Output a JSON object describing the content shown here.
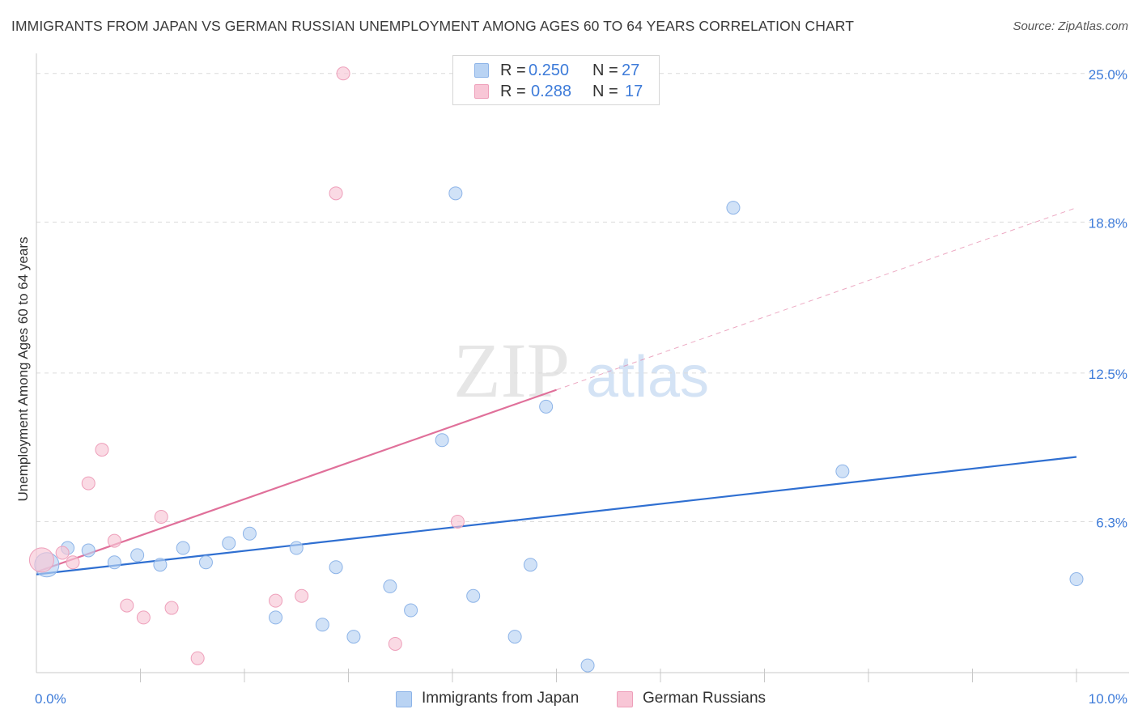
{
  "title": "IMMIGRANTS FROM JAPAN VS GERMAN RUSSIAN UNEMPLOYMENT AMONG AGES 60 TO 64 YEARS CORRELATION CHART",
  "source": "Source: ZipAtlas.com",
  "watermark": {
    "zip": "ZIP",
    "atlas": "atlas"
  },
  "legend_top": [
    {
      "r_label": "R =",
      "r_value": "0.250",
      "n_label": "N =",
      "n_value": "27"
    },
    {
      "r_label": "R =",
      "r_value": "0.288",
      "n_label": "N =",
      "n_value": "17"
    }
  ],
  "colors": {
    "blue_fill": "#b9d3f3",
    "blue_stroke": "#8db4e8",
    "blue_line": "#2f6fd1",
    "pink_fill": "#f8c6d6",
    "pink_stroke": "#ee9fba",
    "pink_line": "#e0709a",
    "tick_blue": "#3d7bd9",
    "grid": "#dcdcdc"
  },
  "chart_data": {
    "type": "scatter",
    "title": "IMMIGRANTS FROM JAPAN VS GERMAN RUSSIAN UNEMPLOYMENT AMONG AGES 60 TO 64 YEARS CORRELATION CHART",
    "xlabel": "",
    "ylabel": "Unemployment Among Ages 60 to 64 years",
    "xlim": [
      0,
      10
    ],
    "ylim": [
      0,
      25.6
    ],
    "x_tick_labels": [
      "0.0%",
      "10.0%"
    ],
    "y_ticks": [
      6.3,
      12.5,
      18.8,
      25.0
    ],
    "y_tick_labels": [
      "6.3%",
      "12.5%",
      "18.8%",
      "25.0%"
    ],
    "legend_position": "top-center",
    "series": [
      {
        "name": "Immigrants from Japan",
        "color": "blue",
        "points": [
          [
            0.1,
            4.5,
            "large"
          ],
          [
            0.3,
            5.2
          ],
          [
            0.5,
            5.1
          ],
          [
            0.75,
            4.6
          ],
          [
            0.97,
            4.9
          ],
          [
            1.19,
            4.5
          ],
          [
            1.41,
            5.2
          ],
          [
            1.63,
            4.6
          ],
          [
            1.85,
            5.4
          ],
          [
            2.05,
            5.8
          ],
          [
            2.3,
            2.3
          ],
          [
            2.5,
            5.2
          ],
          [
            2.75,
            2.0
          ],
          [
            2.88,
            4.4
          ],
          [
            3.05,
            1.5
          ],
          [
            3.4,
            3.6
          ],
          [
            3.6,
            2.6
          ],
          [
            3.9,
            9.7
          ],
          [
            4.03,
            20.0
          ],
          [
            4.2,
            3.2
          ],
          [
            4.6,
            1.5
          ],
          [
            4.75,
            4.5
          ],
          [
            4.9,
            11.1
          ],
          [
            5.3,
            0.3
          ],
          [
            6.7,
            19.4
          ],
          [
            7.75,
            8.4
          ],
          [
            10.0,
            3.9
          ]
        ],
        "trend": {
          "x": [
            0,
            10
          ],
          "y": [
            4.1,
            9.0
          ]
        }
      },
      {
        "name": "German Russians",
        "color": "pink",
        "points": [
          [
            0.05,
            4.7,
            "large"
          ],
          [
            0.25,
            5.0
          ],
          [
            0.35,
            4.6
          ],
          [
            0.5,
            7.9
          ],
          [
            0.63,
            9.3
          ],
          [
            0.75,
            5.5
          ],
          [
            0.87,
            2.8
          ],
          [
            1.03,
            2.3
          ],
          [
            1.2,
            6.5
          ],
          [
            1.3,
            2.7
          ],
          [
            1.55,
            0.6
          ],
          [
            2.3,
            3.0
          ],
          [
            2.55,
            3.2
          ],
          [
            2.88,
            20.0
          ],
          [
            2.95,
            25.0
          ],
          [
            3.45,
            1.2
          ],
          [
            4.05,
            6.3
          ]
        ],
        "trend": {
          "x": [
            0,
            5.0
          ],
          "y": [
            4.2,
            11.8
          ]
        },
        "trend_dashed": {
          "x": [
            5.0,
            10.0
          ],
          "y": [
            11.8,
            19.4
          ]
        }
      }
    ]
  },
  "legend_bottom": [
    {
      "label": "Immigrants from Japan",
      "color": "blue"
    },
    {
      "label": "German Russians",
      "color": "pink"
    }
  ]
}
